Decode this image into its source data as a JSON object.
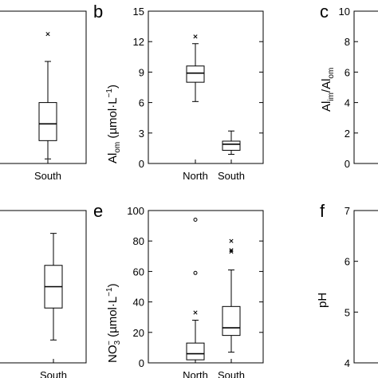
{
  "chart_data": [
    {
      "type": "box",
      "panel": "a",
      "categories": [
        "South"
      ],
      "boxes": [
        {
          "category": "South",
          "whisker_low": 0.3,
          "q1": 1.5,
          "median": 2.6,
          "q3": 4.0,
          "whisker_high": 6.7,
          "outliers": [
            {
              "value": 8.5,
              "marker": "x"
            }
          ]
        }
      ]
    },
    {
      "type": "box",
      "panel": "b",
      "title": "b",
      "ylabel": "Al_om (µmol·L⁻¹)",
      "categories": [
        "North",
        "South"
      ],
      "ylim": [
        0,
        15
      ],
      "yticks": [
        0,
        3,
        6,
        9,
        12,
        15
      ],
      "boxes": [
        {
          "category": "North",
          "whisker_low": 6.1,
          "q1": 8.0,
          "median": 8.9,
          "q3": 9.6,
          "whisker_high": 11.8,
          "outliers": [
            {
              "value": 12.5,
              "marker": "x"
            }
          ]
        },
        {
          "category": "South",
          "whisker_low": 0.9,
          "q1": 1.3,
          "median": 1.9,
          "q3": 2.2,
          "whisker_high": 3.2,
          "outliers": []
        }
      ]
    },
    {
      "type": "box",
      "panel": "c",
      "title": "c",
      "ylabel": "Al_im/Al_om",
      "ylim": [
        0,
        10
      ],
      "yticks": [
        0,
        2,
        4,
        6,
        8,
        10
      ],
      "categories": [],
      "boxes": []
    },
    {
      "type": "box",
      "panel": "d",
      "categories": [
        "South"
      ],
      "boxes": [
        {
          "category": "South",
          "q1": 0.36,
          "median": 0.5,
          "q3": 0.64,
          "whisker_low": 0.15,
          "whisker_high": 0.85,
          "outliers": []
        }
      ]
    },
    {
      "type": "box",
      "panel": "e",
      "title": "e",
      "ylabel": "NO₃⁻ (µmol·L⁻¹)",
      "categories": [
        "North",
        "South"
      ],
      "ylim": [
        0,
        100
      ],
      "yticks": [
        0,
        20,
        40,
        60,
        80,
        100
      ],
      "boxes": [
        {
          "category": "North",
          "whisker_low": 0,
          "q1": 2,
          "median": 6,
          "q3": 13,
          "whisker_high": 28,
          "outliers": [
            {
              "value": 33,
              "marker": "x"
            },
            {
              "value": 59,
              "marker": "o"
            },
            {
              "value": 94,
              "marker": "o"
            }
          ]
        },
        {
          "category": "South",
          "whisker_low": 7,
          "q1": 18,
          "median": 23,
          "q3": 37,
          "whisker_high": 61,
          "outliers": [
            {
              "value": 73,
              "marker": "x"
            },
            {
              "value": 74,
              "marker": "x"
            },
            {
              "value": 80,
              "marker": "x"
            }
          ]
        }
      ]
    },
    {
      "type": "box",
      "panel": "f",
      "title": "f",
      "ylabel": "pH",
      "ylim": [
        4,
        7
      ],
      "yticks": [
        4,
        5,
        6,
        7
      ],
      "categories": [],
      "boxes": []
    }
  ],
  "labels": {
    "panel_b": "b",
    "panel_c": "c",
    "panel_e": "e",
    "panel_f": "f",
    "b_ylabel_main": "Al",
    "b_ylabel_sub": "om",
    "b_ylabel_units": " (µmol·L",
    "b_ylabel_exp": "−1",
    "b_ylabel_close": ")",
    "c_ylabel_a1": "Al",
    "c_ylabel_s1": "im",
    "c_ylabel_mid": "/Al",
    "c_ylabel_s2": "om",
    "e_ylabel_main": "NO",
    "e_ylabel_sub": "3",
    "e_ylabel_sup": "−",
    "e_ylabel_units": " (µmol·L",
    "e_ylabel_exp": "−1",
    "e_ylabel_close": ")",
    "f_ylabel": "pH"
  }
}
